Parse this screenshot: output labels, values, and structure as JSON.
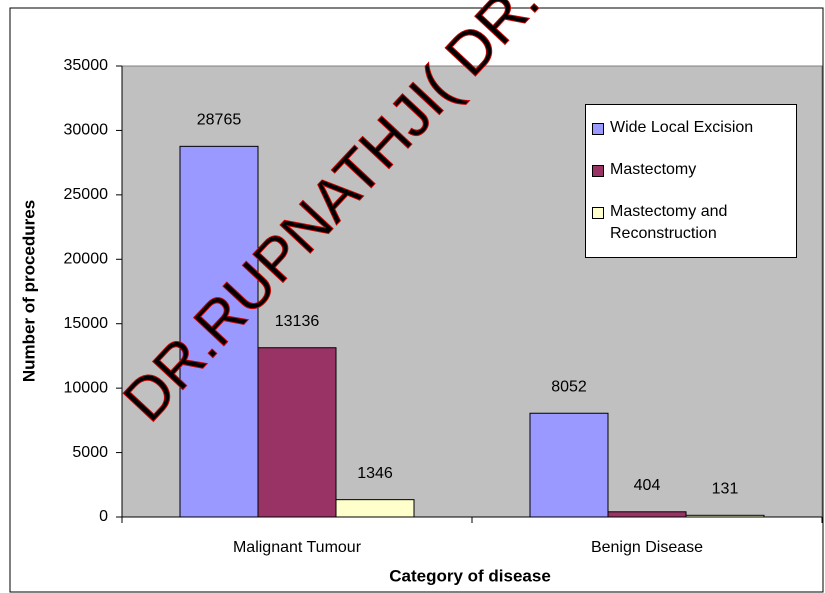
{
  "chart_data": {
    "type": "bar",
    "x_label": "Category of disease",
    "y_label": "Number of procedures",
    "watermark": "DR.RUPNATHJI( DR.",
    "categories": [
      "Malignant Tumour",
      "Benign Disease"
    ],
    "series": [
      {
        "name": "Wide Local Excision",
        "color": "#9999ff",
        "values": [
          28765,
          8052
        ]
      },
      {
        "name": "Mastectomy",
        "color": "#993366",
        "values": [
          13136,
          404
        ]
      },
      {
        "name": "Mastectomy and Reconstruction",
        "color": "#ffffcc",
        "values": [
          1346,
          131
        ]
      }
    ],
    "ylim": [
      0,
      35000
    ],
    "yticks": [
      0,
      5000,
      10000,
      15000,
      20000,
      25000,
      30000,
      35000
    ],
    "legend": "top-right"
  }
}
